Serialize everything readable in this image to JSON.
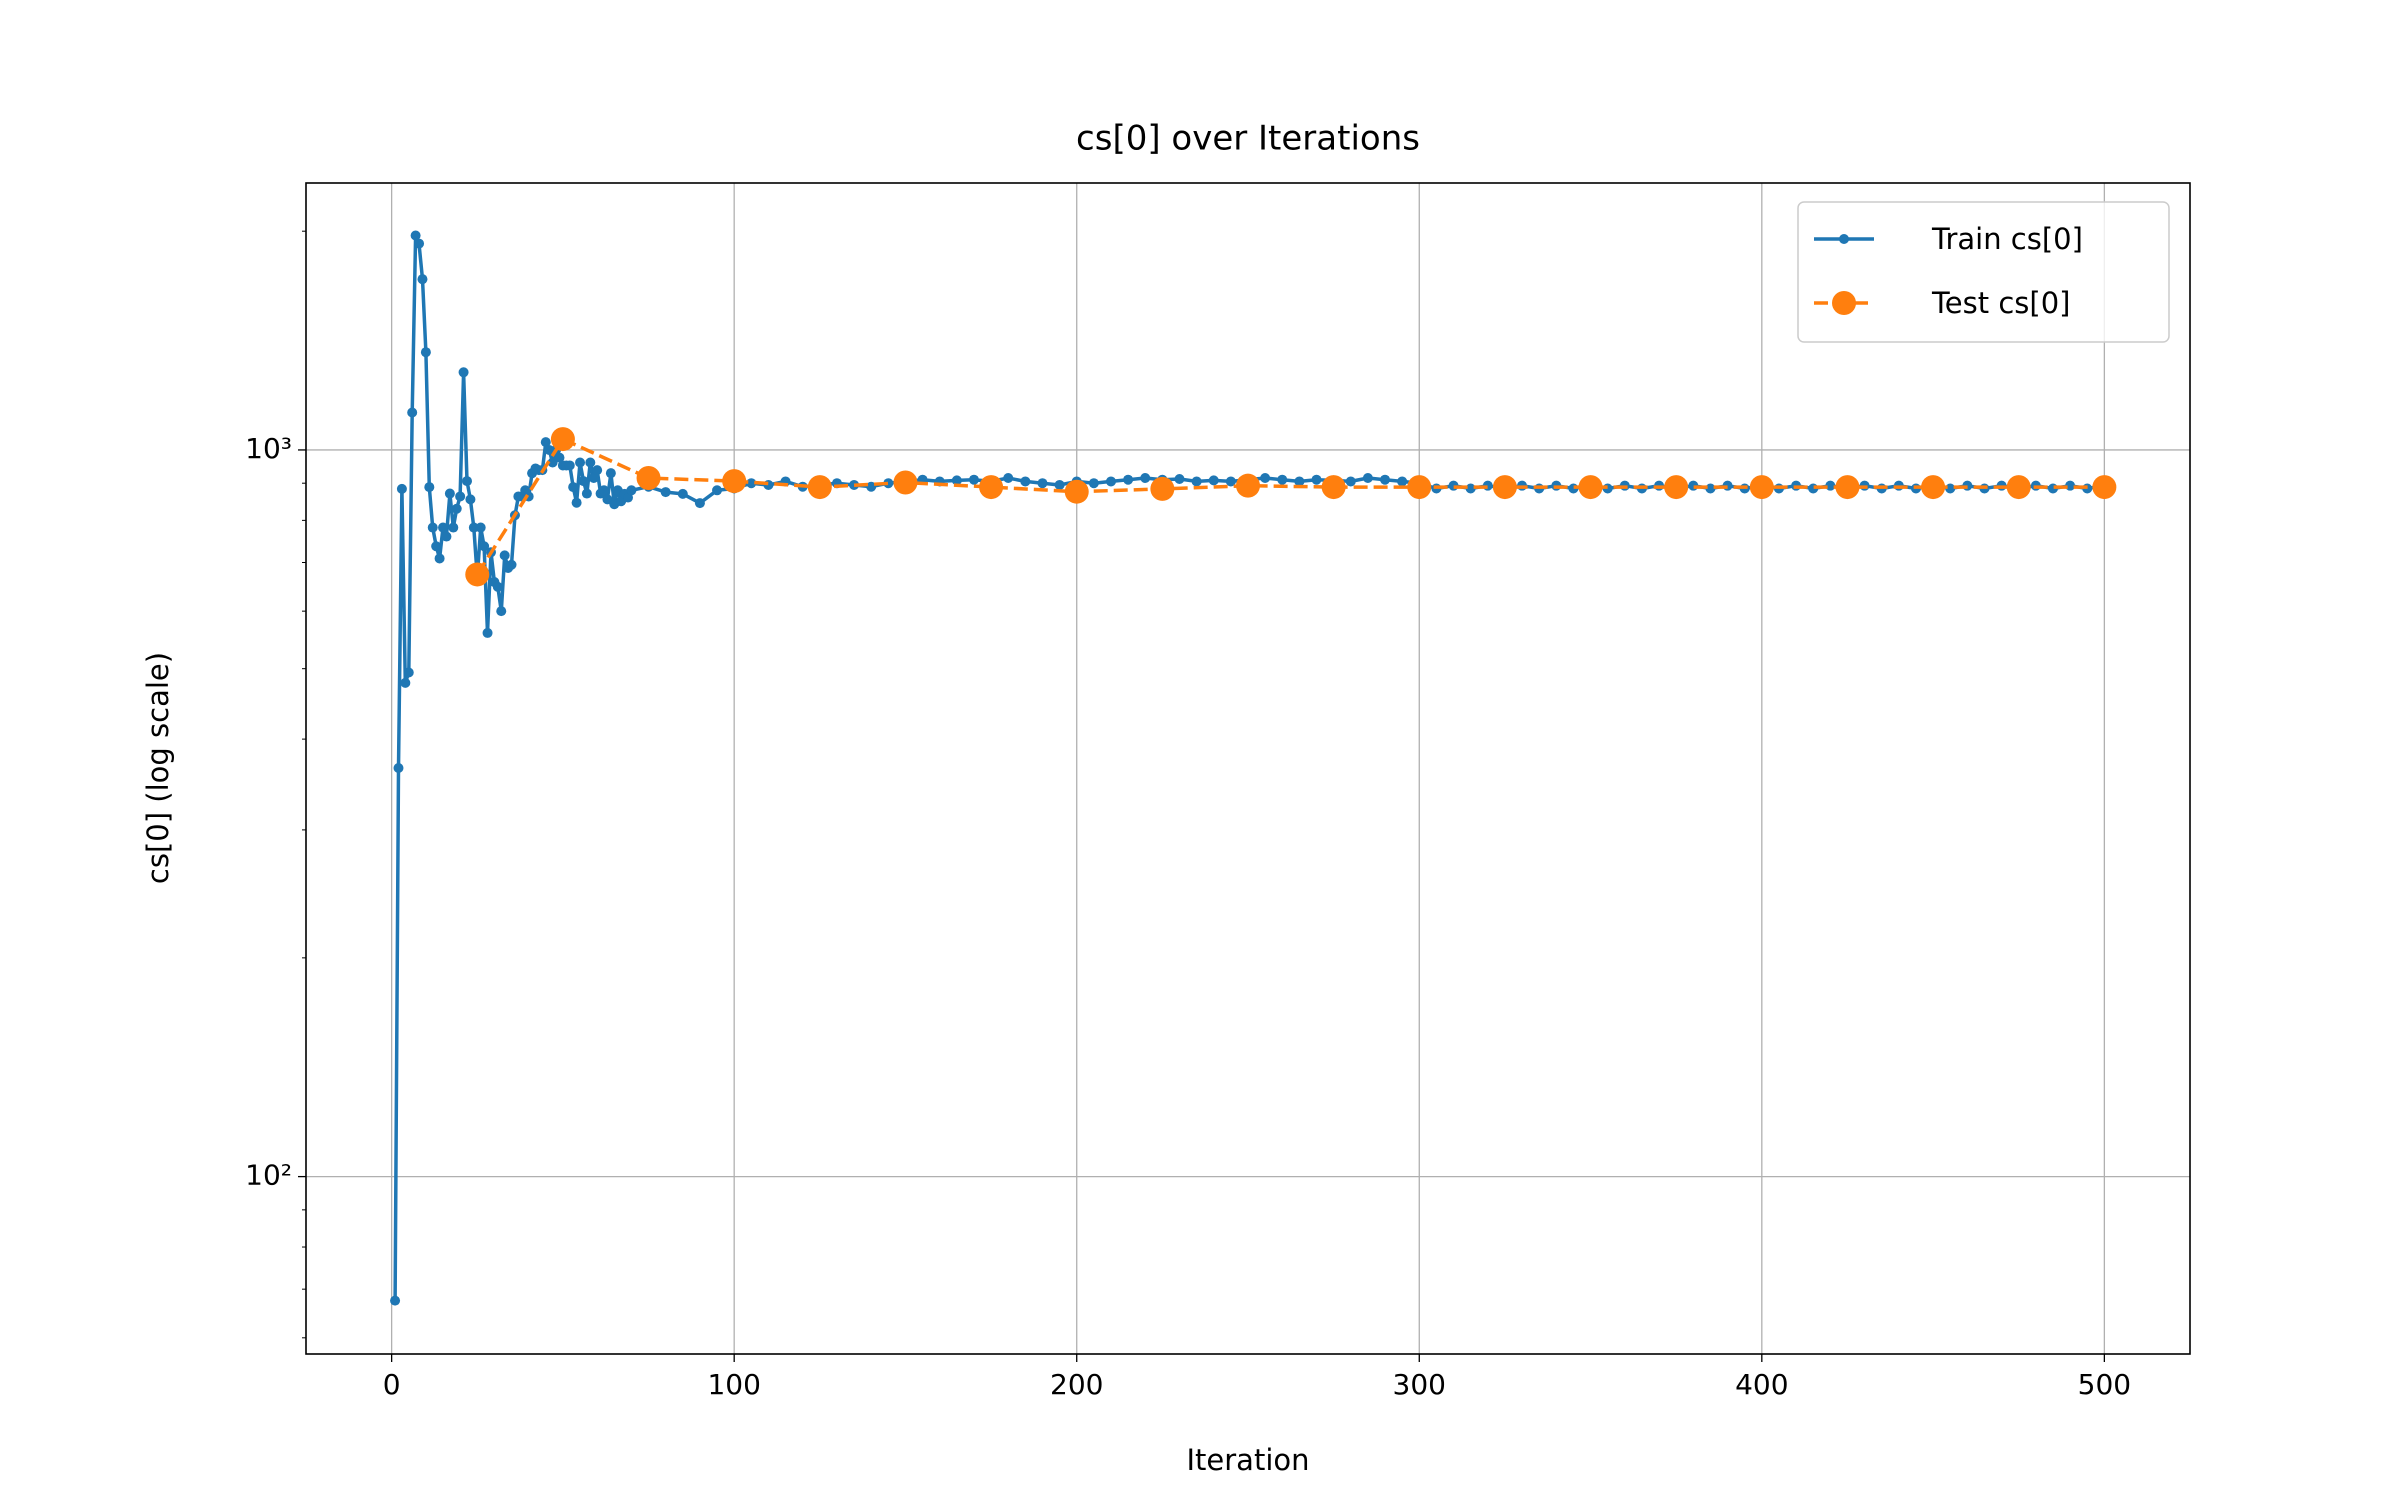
{
  "chart_data": {
    "type": "line",
    "title": "cs[0] over Iterations",
    "xlabel": "Iteration",
    "ylabel": "cs[0] (log scale)",
    "yscale": "log",
    "grid": true,
    "legend": "upper right",
    "xlim": [
      -25,
      525
    ],
    "xticks": [
      0,
      100,
      200,
      300,
      400,
      500
    ],
    "ylim": [
      57,
      2330
    ],
    "yticks": [
      {
        "value": 100,
        "label": "10²"
      },
      {
        "value": 1000,
        "label": "10³"
      }
    ],
    "yminor_ticks": [
      60,
      70,
      80,
      90,
      200,
      300,
      400,
      500,
      600,
      700,
      800,
      900,
      2000
    ],
    "series": [
      {
        "name": "Train cs[0]",
        "color": "#1f77b4",
        "style": "solid",
        "marker_size": 5,
        "x": [
          1,
          2,
          3,
          4,
          5,
          6,
          7,
          8,
          9,
          10,
          11,
          12,
          13,
          14,
          15,
          16,
          17,
          18,
          19,
          20,
          21,
          22,
          23,
          24,
          25,
          26,
          27,
          28,
          29,
          30,
          31,
          32,
          33,
          34,
          35,
          36,
          37,
          38,
          39,
          40,
          41,
          42,
          43,
          44,
          45,
          46,
          47,
          48,
          49,
          50,
          51,
          52,
          53,
          54,
          55,
          56,
          57,
          58,
          59,
          60,
          61,
          62,
          63,
          64,
          65,
          66,
          67,
          68,
          69,
          70,
          75,
          80,
          85,
          90,
          95,
          100,
          105,
          110,
          115,
          120,
          125,
          130,
          135,
          140,
          145,
          150,
          155,
          160,
          165,
          170,
          175,
          180,
          185,
          190,
          195,
          200,
          205,
          210,
          215,
          220,
          225,
          230,
          235,
          240,
          245,
          250,
          255,
          260,
          265,
          270,
          275,
          280,
          285,
          290,
          295,
          300,
          305,
          310,
          315,
          320,
          325,
          330,
          335,
          340,
          345,
          350,
          355,
          360,
          365,
          370,
          375,
          380,
          385,
          390,
          395,
          400,
          405,
          410,
          415,
          420,
          425,
          430,
          435,
          440,
          445,
          450,
          455,
          460,
          465,
          470,
          475,
          480,
          485,
          490,
          495,
          500
        ],
        "values": [
          67.5,
          365,
          884,
          478,
          494,
          1126,
          1973,
          1923,
          1718,
          1363,
          889,
          782,
          737,
          709,
          782,
          760,
          871,
          782,
          830,
          863,
          1279,
          906,
          855,
          782,
          668,
          782,
          737,
          560,
          723,
          658,
          648,
          600,
          716,
          688,
          695,
          813,
          863,
          863,
          880,
          863,
          929,
          943,
          938,
          938,
          1025,
          1000,
          961,
          1000,
          976,
          952,
          952,
          952,
          889,
          846,
          961,
          906,
          871,
          961,
          915,
          938,
          871,
          880,
          855,
          929,
          842,
          880,
          850,
          870,
          860,
          880,
          890,
          875,
          870,
          845,
          880,
          885,
          900,
          895,
          905,
          890,
          895,
          900,
          895,
          890,
          900,
          905,
          910,
          905,
          908,
          910,
          905,
          915,
          905,
          900,
          895,
          905,
          900,
          905,
          910,
          915,
          910,
          912,
          905,
          908,
          905,
          910,
          915,
          910,
          905,
          910,
          908,
          905,
          915,
          910,
          905,
          900,
          885,
          893,
          885,
          893,
          885,
          893,
          885,
          893,
          885,
          893,
          885,
          893,
          885,
          893,
          885,
          893,
          885,
          893,
          885,
          893,
          885,
          893,
          885,
          893,
          885,
          893,
          885,
          893,
          885,
          893,
          885,
          893,
          885,
          893,
          885,
          893,
          885,
          893,
          885,
          893
        ]
      },
      {
        "name": "Test cs[0]",
        "color": "#ff7f0e",
        "style": "dashed",
        "marker_size": 12,
        "x": [
          25,
          50,
          75,
          100,
          125,
          150,
          175,
          200,
          225,
          250,
          275,
          300,
          325,
          350,
          375,
          400,
          425,
          450,
          475,
          500
        ],
        "values": [
          674,
          1035,
          915,
          906,
          889,
          902,
          889,
          876,
          884,
          893,
          889,
          889,
          889,
          889,
          889,
          889,
          889,
          889,
          889,
          889
        ]
      }
    ]
  }
}
